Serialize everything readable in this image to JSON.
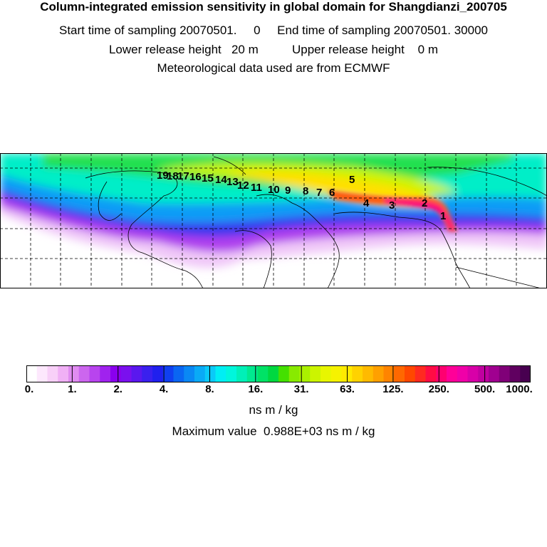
{
  "header": {
    "title": "Column-integrated emission sensitivity in global domain for Shangdianzi_200705",
    "sampling_line": "Start time of sampling 20070501.     0     End time of sampling 20070501. 30000",
    "release_line": "Lower release height   20 m          Upper release height    0 m",
    "met_line": "Meteorological data used are from ECMWF"
  },
  "map": {
    "extent": "global (180°W–180°E, 90°S–90°N)",
    "trajectory_labels": [
      "1",
      "2",
      "3",
      "4",
      "5",
      "6",
      "7",
      "8",
      "9",
      "10",
      "11",
      "12",
      "13",
      "14",
      "15",
      "16",
      "17",
      "18",
      "19"
    ]
  },
  "colorbar": {
    "tick_labels": [
      "0.",
      "1.",
      "2.",
      "4.",
      "8.",
      "16.",
      "31.",
      "63.",
      "125.",
      "250.",
      "500.",
      "1000."
    ],
    "colors": [
      "#ffffff",
      "#fde8fd",
      "#f8d0f8",
      "#f0b0f5",
      "#e08cf0",
      "#cc66ee",
      "#b844ee",
      "#a022ee",
      "#8a00ee",
      "#7a10ee",
      "#5a18ee",
      "#3a20ee",
      "#2020ee",
      "#1040f0",
      "#0a66f2",
      "#0a88f4",
      "#0aaaf6",
      "#0acaf8",
      "#00eef4",
      "#00f6dc",
      "#00f0b8",
      "#00ea90",
      "#00e266",
      "#00d840",
      "#44e000",
      "#88ea00",
      "#aaf000",
      "#ccf400",
      "#e8f600",
      "#f6f200",
      "#ffea00",
      "#ffd200",
      "#ffba00",
      "#ffa000",
      "#ff8400",
      "#ff6800",
      "#ff4800",
      "#ff2a20",
      "#ff0c44",
      "#ff0070",
      "#ff0098",
      "#f000a8",
      "#d800a8",
      "#c000a0",
      "#a00090",
      "#800078",
      "#600060",
      "#480050"
    ],
    "unit": "ns m / kg"
  },
  "maximum": {
    "text": "Maximum value  0.988E+03 ns m / kg"
  }
}
